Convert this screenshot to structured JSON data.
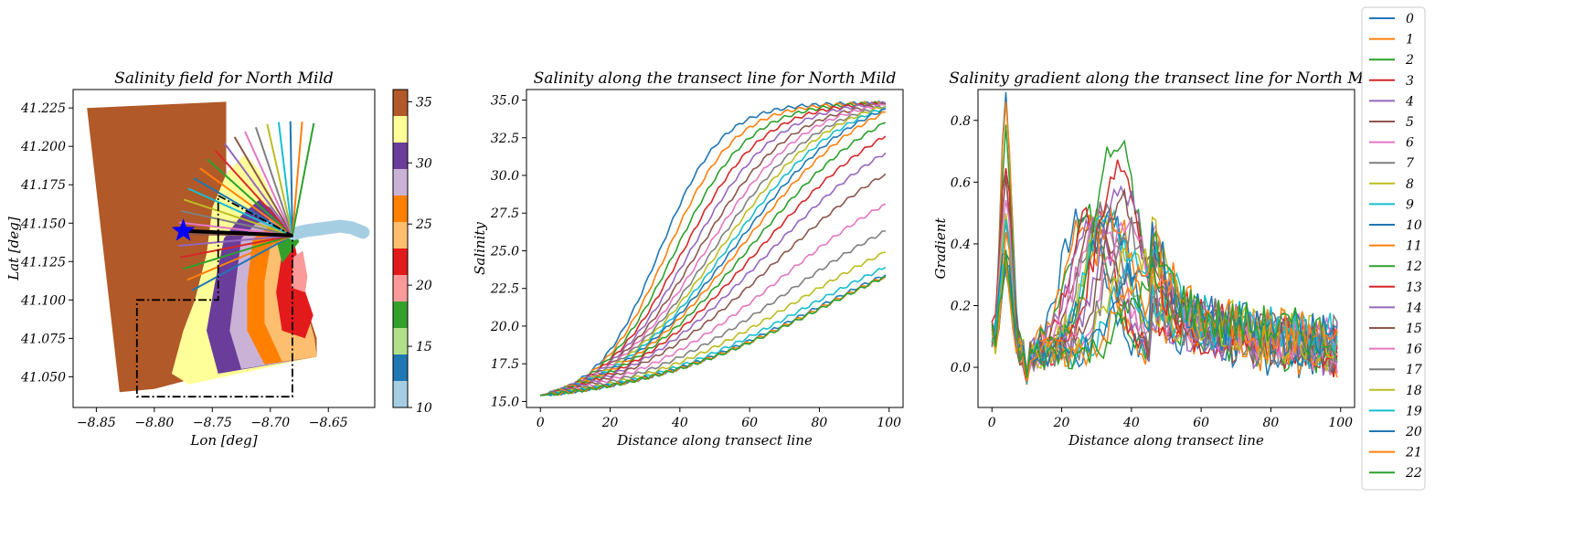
{
  "chart_data": [
    {
      "type": "scatter",
      "title": "Salinity field for North Mild",
      "xlabel": "Lon [deg]",
      "ylabel": "Lat [deg]",
      "xlim": [
        -8.87,
        -8.61
      ],
      "ylim": [
        41.03,
        41.237
      ],
      "xticks": [
        -8.85,
        -8.8,
        -8.75,
        -8.7,
        -8.65
      ],
      "xtick_labels": [
        "−8.85",
        "−8.80",
        "−8.75",
        "−8.70",
        "−8.65"
      ],
      "yticks": [
        41.05,
        41.075,
        41.1,
        41.125,
        41.15,
        41.175,
        41.2,
        41.225
      ],
      "ytick_labels": [
        "41.050",
        "41.075",
        "41.100",
        "41.125",
        "41.150",
        "41.175",
        "41.200",
        "41.225"
      ],
      "colorbar": {
        "range": [
          10,
          36
        ],
        "ticks": [
          10,
          15,
          20,
          25,
          30,
          35
        ],
        "colors": [
          "#a6cee3",
          "#1f78b4",
          "#b2df8a",
          "#33a02c",
          "#fb9a99",
          "#e31a1c",
          "#fdbf6f",
          "#ff7f00",
          "#cab2d6",
          "#6a3d9a",
          "#ffff99",
          "#b15928"
        ]
      },
      "star": {
        "lon": -8.775,
        "lat": 41.145,
        "color": "#0000ff"
      },
      "transect_origin": {
        "lon": -8.681,
        "lat": 41.142
      },
      "boxes": [
        [
          [
            -8.745,
            41.168
          ],
          [
            -8.681,
            41.142
          ],
          [
            -8.681,
            41.037
          ],
          [
            -8.815,
            41.037
          ],
          [
            -8.815,
            41.1
          ],
          [
            -8.745,
            41.1
          ],
          [
            -8.745,
            41.168
          ]
        ]
      ]
    },
    {
      "type": "line",
      "title": "Salinity along the transect line for North Mild",
      "xlabel": "Distance along transect line",
      "ylabel": "Salinity",
      "xlim": [
        -4,
        104
      ],
      "ylim": [
        14.6,
        35.7
      ],
      "xticks": [
        0,
        20,
        40,
        60,
        80,
        100
      ],
      "yticks": [
        15.0,
        17.5,
        20.0,
        22.5,
        25.0,
        27.5,
        30.0,
        32.5,
        35.0
      ],
      "ytick_labels": [
        "15.0",
        "17.5",
        "20.0",
        "22.5",
        "25.0",
        "27.5",
        "30.0",
        "32.5",
        "35.0"
      ],
      "start_value": 15.4,
      "end_values": [
        34.8,
        34.8,
        34.8,
        34.8,
        34.8,
        34.7,
        34.7,
        34.6,
        34.6,
        34.5,
        34.4,
        34.2,
        33.5,
        32.6,
        31.5,
        30.1,
        28.1,
        26.3,
        24.9,
        23.9,
        23.4,
        23.3,
        23.3
      ]
    },
    {
      "type": "line",
      "title": "Salinity gradient along the transect line for North Mild",
      "xlabel": "Distance along transect line",
      "ylabel": "Gradient",
      "xlim": [
        -4,
        104
      ],
      "ylim": [
        -0.13,
        0.9
      ],
      "xticks": [
        0,
        20,
        40,
        60,
        80,
        100
      ],
      "yticks": [
        0.0,
        0.2,
        0.4,
        0.6,
        0.8
      ],
      "ytick_labels": [
        "0.0",
        "0.2",
        "0.4",
        "0.6",
        "0.8"
      ],
      "peak_values": [
        0.85,
        0.8,
        0.73,
        0.65,
        0.58,
        0.55,
        0.5,
        0.45,
        0.42,
        0.4,
        0.38,
        0.36,
        0.7,
        0.62,
        0.55,
        0.5,
        0.45,
        0.4,
        0.35,
        0.3,
        0.28,
        0.25,
        0.2
      ]
    }
  ],
  "legend": {
    "placement": "right",
    "labels": [
      "0",
      "1",
      "2",
      "3",
      "4",
      "5",
      "6",
      "7",
      "8",
      "9",
      "10",
      "11",
      "12",
      "13",
      "14",
      "15",
      "16",
      "17",
      "18",
      "19",
      "20",
      "21",
      "22"
    ],
    "colors": [
      "#1f77b4",
      "#ff7f0e",
      "#2ca02c",
      "#d62728",
      "#9467bd",
      "#8c564b",
      "#e377c2",
      "#7f7f7f",
      "#bcbd22",
      "#17becf",
      "#1f77b4",
      "#ff7f0e",
      "#2ca02c",
      "#d62728",
      "#9467bd",
      "#8c564b",
      "#e377c2",
      "#7f7f7f",
      "#bcbd22",
      "#17becf",
      "#1f77b4",
      "#ff7f0e",
      "#2ca02c"
    ]
  }
}
